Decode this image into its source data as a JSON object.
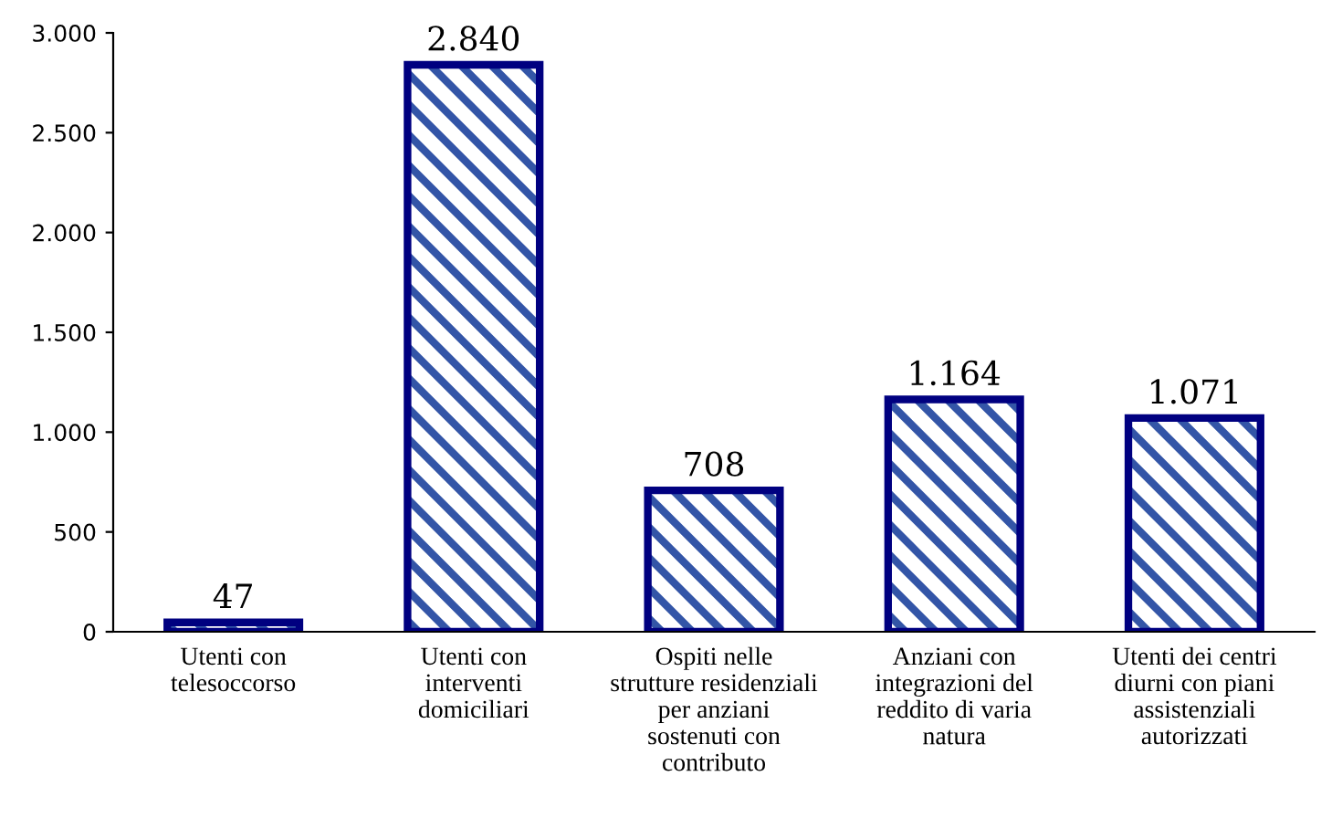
{
  "chart_data": {
    "type": "bar",
    "categories": [
      "Utenti con\ntelesoccorso",
      "Utenti con\ninterventi\ndomiciliari",
      "Ospiti nelle\nstrutture residenziali\nper anziani\nsostenuti con\ncontributo",
      "Anziani con\nintegrazioni del\nreddito di varia\nnatura",
      "Utenti dei centri\ndiurni con piani\nassistenziali\nautorizzati"
    ],
    "values": [
      47,
      2840,
      708,
      1164,
      1071
    ],
    "value_labels": [
      "47",
      "2.840",
      "708",
      "1.164",
      "1.071"
    ],
    "color": "#000080",
    "ylim": [
      0,
      3000
    ],
    "yticks": [
      {
        "value": 0,
        "label": "0"
      },
      {
        "value": 500,
        "label": "500"
      },
      {
        "value": 1000,
        "label": "1.000"
      },
      {
        "value": 1500,
        "label": "1.500"
      },
      {
        "value": 2000,
        "label": "2.000"
      },
      {
        "value": 2500,
        "label": "2.500"
      },
      {
        "value": 3000,
        "label": "3.000"
      }
    ],
    "grid": false,
    "legend": false
  }
}
